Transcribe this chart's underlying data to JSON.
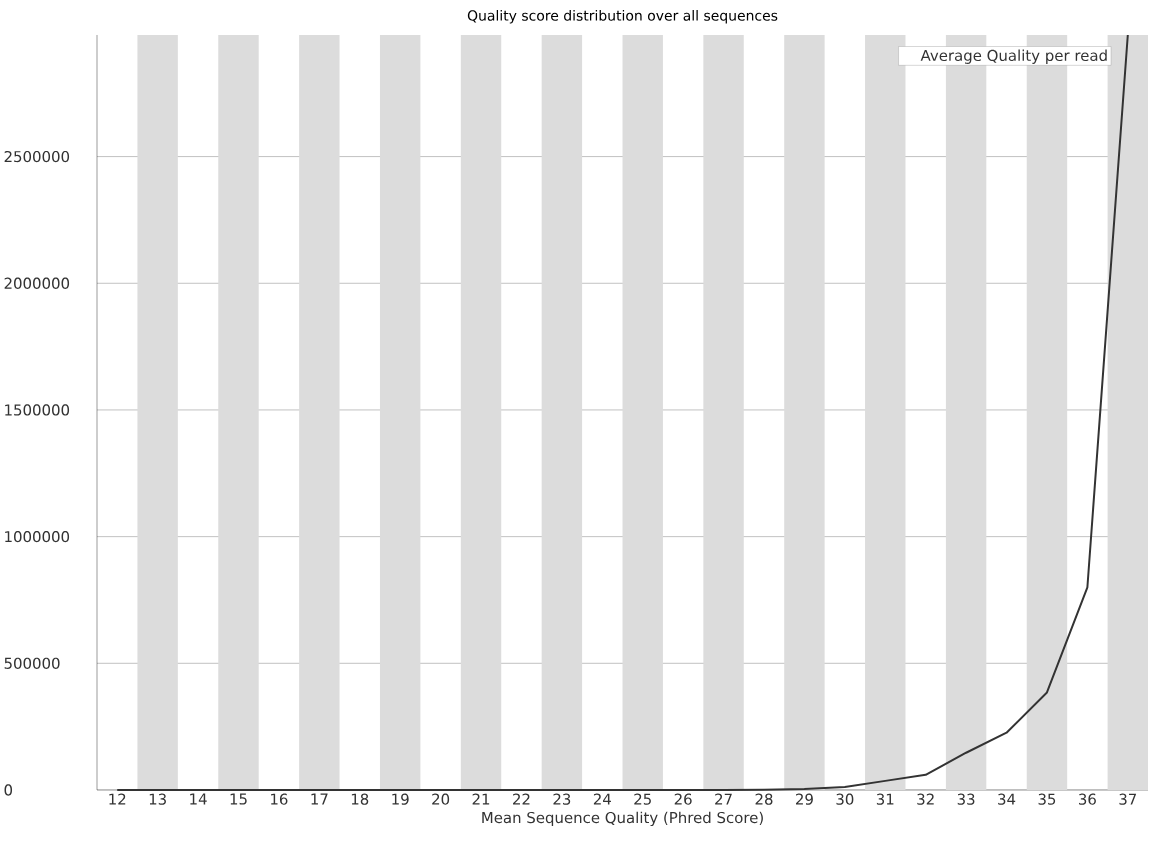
{
  "chart_data": {
    "type": "line",
    "title": "Quality score distribution over all sequences",
    "xlabel": "Mean Sequence Quality (Phred Score)",
    "x": [
      12,
      13,
      14,
      15,
      16,
      17,
      18,
      19,
      20,
      21,
      22,
      23,
      24,
      25,
      26,
      27,
      28,
      29,
      30,
      31,
      32,
      33,
      34,
      35,
      36,
      37
    ],
    "series": [
      {
        "name": "Average Quality per read",
        "color": "#333333",
        "values": [
          0,
          0,
          0,
          0,
          0,
          0,
          0,
          0,
          0,
          0,
          0,
          0,
          0,
          0,
          0,
          0,
          1000,
          4000,
          12000,
          36000,
          60000,
          147000,
          226000,
          385000,
          800000,
          2980000
        ]
      }
    ],
    "xlim": [
      11.5,
      37.5
    ],
    "xticks": [
      12,
      13,
      14,
      15,
      16,
      17,
      18,
      19,
      20,
      21,
      22,
      23,
      24,
      25,
      26,
      27,
      28,
      29,
      30,
      31,
      32,
      33,
      34,
      35,
      36,
      37
    ],
    "ylim": [
      0,
      2980000
    ],
    "yticks": [
      0,
      500000,
      1000000,
      1500000,
      2000000,
      2500000
    ],
    "bands": [
      {
        "axis": "x",
        "from": 12.5,
        "to": 13.5,
        "color": "#dcdcdc"
      },
      {
        "axis": "x",
        "from": 14.5,
        "to": 15.5,
        "color": "#dcdcdc"
      },
      {
        "axis": "x",
        "from": 16.5,
        "to": 17.5,
        "color": "#dcdcdc"
      },
      {
        "axis": "x",
        "from": 18.5,
        "to": 19.5,
        "color": "#dcdcdc"
      },
      {
        "axis": "x",
        "from": 20.5,
        "to": 21.5,
        "color": "#dcdcdc"
      },
      {
        "axis": "x",
        "from": 22.5,
        "to": 23.5,
        "color": "#dcdcdc"
      },
      {
        "axis": "x",
        "from": 24.5,
        "to": 25.5,
        "color": "#dcdcdc"
      },
      {
        "axis": "x",
        "from": 26.5,
        "to": 27.5,
        "color": "#dcdcdc"
      },
      {
        "axis": "x",
        "from": 28.5,
        "to": 29.5,
        "color": "#dcdcdc"
      },
      {
        "axis": "x",
        "from": 30.5,
        "to": 31.5,
        "color": "#dcdcdc"
      },
      {
        "axis": "x",
        "from": 32.5,
        "to": 33.5,
        "color": "#dcdcdc"
      },
      {
        "axis": "x",
        "from": 34.5,
        "to": 35.5,
        "color": "#dcdcdc"
      },
      {
        "axis": "x",
        "from": 36.5,
        "to": 37.5,
        "color": "#dcdcdc"
      }
    ],
    "grid": "y",
    "legend": "top right",
    "marker": "none",
    "line_style": "solid"
  }
}
